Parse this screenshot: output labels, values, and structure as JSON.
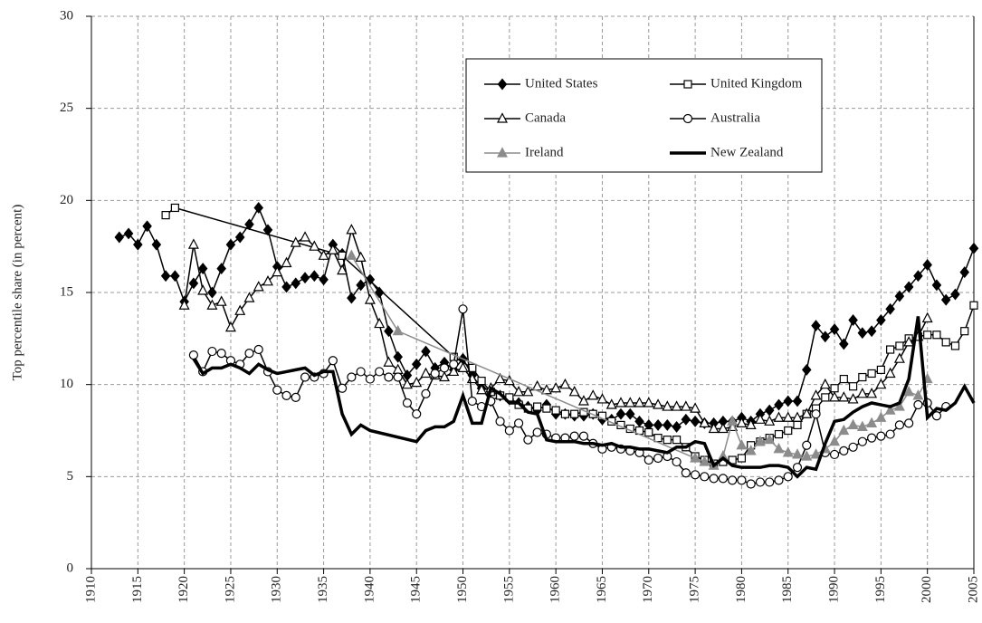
{
  "chart_data": {
    "type": "line",
    "y_label": "Top percentile share (in percent)",
    "xlim": [
      1910,
      2005
    ],
    "xticks": [
      1910,
      1915,
      1920,
      1925,
      1930,
      1935,
      1940,
      1945,
      1950,
      1955,
      1960,
      1965,
      1970,
      1975,
      1980,
      1985,
      1990,
      1995,
      2000,
      2005
    ],
    "ylim": [
      0,
      30
    ],
    "yticks": [
      0,
      5,
      10,
      15,
      20,
      25,
      30
    ],
    "grid": true,
    "series": [
      {
        "name": "United States",
        "color": "#000000",
        "marker": "diamond",
        "line_width": 1.5,
        "x": [
          1913,
          1914,
          1915,
          1916,
          1917,
          1918,
          1919,
          1920,
          1921,
          1922,
          1923,
          1924,
          1925,
          1926,
          1927,
          1928,
          1929,
          1930,
          1931,
          1932,
          1933,
          1934,
          1935,
          1936,
          1937,
          1938,
          1939,
          1940,
          1941,
          1942,
          1943,
          1944,
          1945,
          1946,
          1947,
          1948,
          1949,
          1950,
          1951,
          1952,
          1953,
          1954,
          1955,
          1956,
          1957,
          1958,
          1959,
          1960,
          1961,
          1962,
          1963,
          1964,
          1965,
          1966,
          1967,
          1968,
          1969,
          1970,
          1971,
          1972,
          1973,
          1974,
          1975,
          1976,
          1977,
          1978,
          1979,
          1980,
          1981,
          1982,
          1983,
          1984,
          1985,
          1986,
          1987,
          1988,
          1989,
          1990,
          1991,
          1992,
          1993,
          1994,
          1995,
          1996,
          1997,
          1998,
          1999,
          2000,
          2001,
          2002,
          2003,
          2004,
          2005
        ],
        "values": [
          18.0,
          18.2,
          17.6,
          18.6,
          17.6,
          15.9,
          15.9,
          14.5,
          15.5,
          16.3,
          15.0,
          16.3,
          17.6,
          18.0,
          18.7,
          19.6,
          18.4,
          16.4,
          15.3,
          15.5,
          15.8,
          15.9,
          15.7,
          17.6,
          17.1,
          14.7,
          15.4,
          15.7,
          15.0,
          12.9,
          11.5,
          10.5,
          11.1,
          11.8,
          10.9,
          11.2,
          10.8,
          11.4,
          10.5,
          9.8,
          9.1,
          9.4,
          9.2,
          9.0,
          8.8,
          8.6,
          8.9,
          8.4,
          8.4,
          8.3,
          8.3,
          8.4,
          8.1,
          8.1,
          8.4,
          8.4,
          8.0,
          7.8,
          7.8,
          7.8,
          7.7,
          8.1,
          8.0,
          7.9,
          7.9,
          8.0,
          8.0,
          8.2,
          8.0,
          8.4,
          8.6,
          8.9,
          9.1,
          9.1,
          10.8,
          13.2,
          12.6,
          13.0,
          12.2,
          13.5,
          12.8,
          12.9,
          13.5,
          14.1,
          14.8,
          15.3,
          15.9,
          16.5,
          15.4,
          14.6,
          14.9,
          16.1,
          17.4
        ]
      },
      {
        "name": "United Kingdom",
        "color": "#000000",
        "marker": "square",
        "line_width": 1.5,
        "x": [
          1918,
          1919,
          1937,
          1949,
          1951,
          1952,
          1953,
          1954,
          1955,
          1956,
          1957,
          1958,
          1959,
          1960,
          1961,
          1962,
          1963,
          1964,
          1965,
          1966,
          1967,
          1968,
          1969,
          1970,
          1971,
          1972,
          1973,
          1974,
          1975,
          1976,
          1977,
          1978,
          1979,
          1980,
          1981,
          1982,
          1983,
          1984,
          1985,
          1986,
          1987,
          1988,
          1989,
          1990,
          1991,
          1992,
          1993,
          1994,
          1995,
          1996,
          1997,
          1998,
          1999,
          2000,
          2001,
          2002,
          2003,
          2004,
          2005
        ],
        "values": [
          19.2,
          19.6,
          17.0,
          11.5,
          10.9,
          10.2,
          9.6,
          9.4,
          9.3,
          8.9,
          8.7,
          8.8,
          8.7,
          8.6,
          8.4,
          8.4,
          8.5,
          8.4,
          8.3,
          8.0,
          7.8,
          7.6,
          7.5,
          7.4,
          7.1,
          7.0,
          7.0,
          6.6,
          6.1,
          5.9,
          5.7,
          5.8,
          5.9,
          6.0,
          6.7,
          6.9,
          7.1,
          7.3,
          7.5,
          7.8,
          8.4,
          8.7,
          9.3,
          9.8,
          10.3,
          9.9,
          10.4,
          10.6,
          10.8,
          11.9,
          12.1,
          12.5,
          12.6,
          12.7,
          12.7,
          12.3,
          12.1,
          12.9,
          14.3
        ]
      },
      {
        "name": "Canada",
        "color": "#000000",
        "marker": "triangle",
        "line_width": 1.5,
        "x": [
          1920,
          1921,
          1922,
          1923,
          1924,
          1925,
          1926,
          1927,
          1928,
          1929,
          1930,
          1931,
          1932,
          1933,
          1934,
          1935,
          1936,
          1937,
          1938,
          1939,
          1940,
          1941,
          1942,
          1943,
          1944,
          1945,
          1946,
          1947,
          1948,
          1949,
          1950,
          1951,
          1952,
          1953,
          1954,
          1955,
          1956,
          1957,
          1958,
          1959,
          1960,
          1961,
          1962,
          1963,
          1964,
          1965,
          1966,
          1967,
          1968,
          1969,
          1970,
          1971,
          1972,
          1973,
          1974,
          1975,
          1976,
          1977,
          1978,
          1979,
          1980,
          1981,
          1982,
          1983,
          1984,
          1985,
          1986,
          1987,
          1988,
          1989,
          1990,
          1991,
          1992,
          1993,
          1994,
          1995,
          1996,
          1997,
          1998,
          1999,
          2000
        ],
        "values": [
          14.3,
          17.6,
          15.1,
          14.3,
          14.5,
          13.1,
          14.0,
          14.7,
          15.3,
          15.6,
          16.1,
          16.6,
          17.7,
          18.0,
          17.5,
          17.0,
          17.3,
          16.2,
          18.4,
          16.9,
          14.6,
          13.3,
          11.2,
          10.8,
          10.0,
          10.1,
          10.6,
          10.5,
          10.4,
          10.7,
          10.9,
          10.3,
          9.7,
          9.8,
          10.3,
          10.2,
          9.6,
          9.6,
          9.9,
          9.7,
          9.8,
          10.0,
          9.6,
          9.1,
          9.4,
          9.2,
          8.9,
          9.0,
          9.0,
          9.0,
          9.0,
          8.9,
          8.8,
          8.8,
          8.8,
          8.7,
          7.9,
          7.6,
          7.6,
          7.7,
          7.9,
          7.8,
          8.1,
          8.0,
          8.2,
          8.2,
          8.2,
          8.4,
          9.4,
          10.0,
          9.3,
          9.3,
          9.2,
          9.5,
          9.5,
          10.0,
          10.6,
          11.4,
          12.3,
          12.6,
          13.6
        ]
      },
      {
        "name": "Australia",
        "color": "#000000",
        "marker": "circle",
        "line_width": 1.5,
        "x": [
          1921,
          1922,
          1923,
          1924,
          1925,
          1926,
          1927,
          1928,
          1929,
          1930,
          1931,
          1932,
          1933,
          1934,
          1935,
          1936,
          1937,
          1938,
          1939,
          1940,
          1941,
          1942,
          1943,
          1944,
          1945,
          1946,
          1947,
          1948,
          1949,
          1950,
          1951,
          1952,
          1953,
          1954,
          1955,
          1956,
          1957,
          1958,
          1959,
          1960,
          1961,
          1962,
          1963,
          1964,
          1965,
          1966,
          1967,
          1968,
          1969,
          1970,
          1971,
          1972,
          1973,
          1974,
          1975,
          1976,
          1977,
          1978,
          1979,
          1980,
          1981,
          1982,
          1983,
          1984,
          1985,
          1986,
          1987,
          1988,
          1989,
          1990,
          1991,
          1992,
          1993,
          1994,
          1995,
          1996,
          1997,
          1998,
          1999,
          2000,
          2001,
          2002
        ],
        "values": [
          11.6,
          10.7,
          11.8,
          11.7,
          11.3,
          11.1,
          11.7,
          11.9,
          10.7,
          9.7,
          9.4,
          9.3,
          10.4,
          10.4,
          10.6,
          11.3,
          9.8,
          10.4,
          10.7,
          10.3,
          10.7,
          10.4,
          10.4,
          9.0,
          8.4,
          9.5,
          10.6,
          10.9,
          11.1,
          14.1,
          9.1,
          8.8,
          9.1,
          8.0,
          7.5,
          7.9,
          7.0,
          7.4,
          7.3,
          7.1,
          7.1,
          7.2,
          7.2,
          6.8,
          6.5,
          6.6,
          6.5,
          6.4,
          6.3,
          5.9,
          6.0,
          6.1,
          5.8,
          5.2,
          5.1,
          5.0,
          4.9,
          4.9,
          4.8,
          4.8,
          4.6,
          4.7,
          4.7,
          4.8,
          5.0,
          5.5,
          6.7,
          8.4,
          6.3,
          6.2,
          6.4,
          6.6,
          6.9,
          7.1,
          7.2,
          7.3,
          7.8,
          7.9,
          8.9,
          9.0,
          8.3,
          8.8
        ]
      },
      {
        "name": "Ireland",
        "color": "#8c8c8c",
        "marker": "filled-triangle",
        "line_width": 1.5,
        "x": [
          1938,
          1943,
          1975,
          1976,
          1977,
          1978,
          1979,
          1980,
          1981,
          1982,
          1983,
          1984,
          1985,
          1986,
          1987,
          1988,
          1989,
          1990,
          1991,
          1992,
          1993,
          1994,
          1995,
          1996,
          1997,
          1998,
          1999,
          2000
        ],
        "values": [
          17.0,
          12.9,
          6.0,
          5.8,
          5.6,
          6.1,
          8.0,
          6.7,
          6.4,
          6.9,
          7.0,
          6.5,
          6.3,
          6.2,
          6.1,
          6.2,
          6.5,
          6.9,
          7.5,
          7.8,
          7.7,
          7.9,
          8.2,
          8.6,
          8.8,
          9.6,
          9.4,
          10.3
        ]
      },
      {
        "name": "New Zealand",
        "color": "#000000",
        "marker": "none",
        "line_width": 3.5,
        "x": [
          1921,
          1922,
          1923,
          1924,
          1925,
          1926,
          1927,
          1928,
          1929,
          1930,
          1931,
          1932,
          1933,
          1934,
          1935,
          1936,
          1937,
          1938,
          1939,
          1940,
          1945,
          1946,
          1947,
          1948,
          1949,
          1950,
          1951,
          1952,
          1953,
          1954,
          1955,
          1956,
          1957,
          1958,
          1959,
          1960,
          1961,
          1962,
          1963,
          1964,
          1965,
          1966,
          1967,
          1968,
          1969,
          1970,
          1971,
          1972,
          1973,
          1974,
          1975,
          1976,
          1977,
          1978,
          1979,
          1980,
          1981,
          1982,
          1983,
          1984,
          1985,
          1986,
          1987,
          1988,
          1989,
          1990,
          1991,
          1992,
          1993,
          1994,
          1995,
          1996,
          1997,
          1998,
          1999,
          2000,
          2001,
          2002,
          2003,
          2004,
          2005
        ],
        "values": [
          11.4,
          10.6,
          10.9,
          10.9,
          11.1,
          10.9,
          10.6,
          11.1,
          10.8,
          10.6,
          10.7,
          10.8,
          10.9,
          10.5,
          10.7,
          10.7,
          8.4,
          7.3,
          7.8,
          7.5,
          6.9,
          7.5,
          7.7,
          7.7,
          8.0,
          9.4,
          7.9,
          7.9,
          9.8,
          9.5,
          9.0,
          9.0,
          8.5,
          8.4,
          7.0,
          6.9,
          6.9,
          6.9,
          6.8,
          6.8,
          6.7,
          6.8,
          6.6,
          6.6,
          6.5,
          6.5,
          6.4,
          6.3,
          6.6,
          6.6,
          6.9,
          6.8,
          5.6,
          6.0,
          5.6,
          5.5,
          5.5,
          5.5,
          5.6,
          5.6,
          5.5,
          5.0,
          5.5,
          5.4,
          6.8,
          8.0,
          8.1,
          8.5,
          8.8,
          9.0,
          8.9,
          8.8,
          9.0,
          10.3,
          13.7,
          8.2,
          8.7,
          8.6,
          9.0,
          9.9,
          9.0
        ]
      }
    ]
  }
}
